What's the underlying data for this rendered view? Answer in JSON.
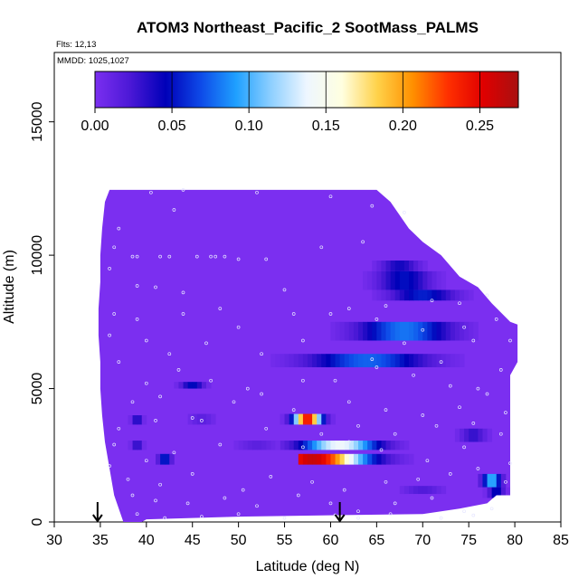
{
  "chart_data": {
    "type": "heatmap",
    "title": "ATOM3 Northeast_Pacific_2 SootMass_PALMS",
    "annotations": [
      "Flts: 12,13",
      "MMDD: 1025,1027"
    ],
    "xlabel": "Latitude (deg N)",
    "ylabel": "Altitude (m)",
    "xlim": [
      30,
      85
    ],
    "ylim": [
      0,
      17600
    ],
    "x_ticks": [
      30,
      35,
      40,
      45,
      50,
      55,
      60,
      65,
      70,
      75,
      80,
      85
    ],
    "y_ticks": [
      0,
      5000,
      10000,
      15000
    ],
    "grid": false,
    "colorbar": {
      "ticks": [
        "0.00",
        "0.05",
        "0.10",
        "0.15",
        "0.20",
        "0.25"
      ],
      "tick_values": [
        0,
        0.05,
        0.1,
        0.15,
        0.2,
        0.25
      ],
      "range": [
        0,
        0.275
      ],
      "colors": [
        "#7b2ff0",
        "#4b18d6",
        "#0000b8",
        "#0e4ae8",
        "#1fa0ff",
        "#8fd0ff",
        "#eef6ff",
        "#ffffe0",
        "#ffd24a",
        "#ff9000",
        "#ff3000",
        "#e00000",
        "#a81010"
      ]
    },
    "background_value": 0.0,
    "domain_outline": [
      [
        36.0,
        12450
      ],
      [
        43.0,
        12450
      ],
      [
        65.0,
        12450
      ],
      [
        66.5,
        12000
      ],
      [
        67.5,
        11500
      ],
      [
        68.5,
        11000
      ],
      [
        70.0,
        10500
      ],
      [
        72.0,
        10000
      ],
      [
        74.0,
        9200
      ],
      [
        76.0,
        8800
      ],
      [
        77.5,
        8200
      ],
      [
        79.5,
        7500
      ],
      [
        80.3,
        7400
      ],
      [
        80.3,
        6000
      ],
      [
        79.5,
        5500
      ],
      [
        79.5,
        1000
      ],
      [
        78.0,
        1000
      ],
      [
        77.0,
        700
      ],
      [
        74.0,
        500
      ],
      [
        70.0,
        300
      ],
      [
        50.0,
        200
      ],
      [
        40.0,
        100
      ],
      [
        39.5,
        0
      ],
      [
        37.5,
        0
      ],
      [
        36.5,
        1000
      ],
      [
        36.0,
        2000
      ],
      [
        35.5,
        3000
      ],
      [
        35.2,
        4000
      ],
      [
        35.0,
        5000
      ],
      [
        35.0,
        6000
      ],
      [
        34.8,
        7000
      ],
      [
        34.8,
        8000
      ],
      [
        35.0,
        9000
      ],
      [
        35.0,
        10000
      ],
      [
        35.2,
        11000
      ],
      [
        35.5,
        12000
      ]
    ],
    "plumes": [
      {
        "lat": [
          56.5,
          75.5
        ],
        "alt": [
          2150,
          2550
        ],
        "peak_lat": 58.0,
        "peak": 0.262,
        "width": 8.0
      },
      {
        "lat": [
          54.0,
          61.5
        ],
        "alt": [
          3650,
          4050
        ],
        "peak_lat": 57.5,
        "peak": 0.245,
        "width": 2.1
      },
      {
        "lat": [
          53.5,
          71.5
        ],
        "alt": [
          2700,
          3050
        ],
        "peak_lat": 61.0,
        "peak": 0.14,
        "width": 6.0
      },
      {
        "lat": [
          53.0,
          80.0
        ],
        "alt": [
          6800,
          7500
        ],
        "peak_lat": 68.0,
        "peak": 0.08,
        "width": 7.0
      },
      {
        "lat": [
          52.5,
          80.0
        ],
        "alt": [
          5800,
          6300
        ],
        "peak_lat": 64.0,
        "peak": 0.075,
        "width": 9.0
      },
      {
        "lat": [
          60.0,
          78.0
        ],
        "alt": [
          8300,
          8700
        ],
        "peak_lat": 70.0,
        "peak": 0.055,
        "width": 5.0
      },
      {
        "lat": [
          62.5,
          73.5
        ],
        "alt": [
          8700,
          9400
        ],
        "peak_lat": 68.0,
        "peak": 0.05,
        "width": 4.0
      },
      {
        "lat": [
          40.0,
          47.0
        ],
        "alt": [
          5000,
          5250
        ],
        "peak_lat": 45.0,
        "peak": 0.05,
        "width": 1.8
      },
      {
        "lat": [
          60.0,
          71.0
        ],
        "alt": [
          9400,
          9800
        ],
        "peak_lat": 67.5,
        "peak": 0.04,
        "width": 3.0
      },
      {
        "lat": [
          74.0,
          80.0
        ],
        "alt": [
          1300,
          1800
        ],
        "peak_lat": 77.5,
        "peak": 0.1,
        "width": 1.4
      },
      {
        "lat": [
          76.0,
          80.0
        ],
        "alt": [
          900,
          1300
        ],
        "peak_lat": 78.0,
        "peak": 0.05,
        "width": 1.2
      },
      {
        "lat": [
          38.0,
          40.5
        ],
        "alt": [
          3650,
          4000
        ],
        "peak_lat": 39.0,
        "peak": 0.04,
        "width": 0.8
      },
      {
        "lat": [
          38.0,
          40.5
        ],
        "alt": [
          2700,
          3050
        ],
        "peak_lat": 39.0,
        "peak": 0.035,
        "width": 0.8
      },
      {
        "lat": [
          41.0,
          45.0
        ],
        "alt": [
          2150,
          2550
        ],
        "peak_lat": 42.0,
        "peak": 0.06,
        "width": 1.0
      },
      {
        "lat": [
          44.0,
          50.0
        ],
        "alt": [
          3650,
          4050
        ],
        "peak_lat": 46.0,
        "peak": 0.015,
        "width": 2.0
      },
      {
        "lat": [
          73.0,
          78.0
        ],
        "alt": [
          3000,
          3500
        ],
        "peak_lat": 75.5,
        "peak": 0.03,
        "width": 2.0
      },
      {
        "lat": [
          67.0,
          76.0
        ],
        "alt": [
          1050,
          1350
        ],
        "peak_lat": 70.0,
        "peak": 0.02,
        "width": 3.0
      },
      {
        "lat": [
          47.0,
          56.0
        ],
        "alt": [
          2700,
          3050
        ],
        "peak_lat": 52.0,
        "peak": 0.015,
        "width": 3.0
      }
    ],
    "samples": [
      [
        40.5,
        12350
      ],
      [
        44.0,
        12450
      ],
      [
        52.0,
        12350
      ],
      [
        60.0,
        12200
      ],
      [
        64.5,
        11850
      ],
      [
        68.0,
        11600
      ],
      [
        37.0,
        11000
      ],
      [
        36.5,
        10300
      ],
      [
        38.5,
        9950
      ],
      [
        39.0,
        9950
      ],
      [
        41.5,
        9950
      ],
      [
        42.5,
        9950
      ],
      [
        45.5,
        9950
      ],
      [
        47.0,
        9950
      ],
      [
        47.5,
        9950
      ],
      [
        48.5,
        9950
      ],
      [
        50.0,
        9850
      ],
      [
        53.0,
        9850
      ],
      [
        59.0,
        10300
      ],
      [
        63.5,
        10500
      ],
      [
        43.0,
        11700
      ],
      [
        36.0,
        9500
      ],
      [
        39.0,
        8850
      ],
      [
        41.0,
        8800
      ],
      [
        44.0,
        8600
      ],
      [
        48.0,
        8000
      ],
      [
        55.0,
        8700
      ],
      [
        62.0,
        8000
      ],
      [
        66.0,
        8100
      ],
      [
        71.0,
        8300
      ],
      [
        74.0,
        8200
      ],
      [
        77.0,
        8500
      ],
      [
        36.5,
        7800
      ],
      [
        39.0,
        7600
      ],
      [
        44.0,
        7800
      ],
      [
        50.0,
        7300
      ],
      [
        56.0,
        7800
      ],
      [
        60.0,
        7800
      ],
      [
        65.0,
        7600
      ],
      [
        70.0,
        7200
      ],
      [
        74.5,
        7300
      ],
      [
        78.0,
        7600
      ],
      [
        36.0,
        7000
      ],
      [
        40.0,
        6800
      ],
      [
        42.5,
        6300
      ],
      [
        46.5,
        6700
      ],
      [
        52.5,
        6300
      ],
      [
        57.0,
        6800
      ],
      [
        64.5,
        6100
      ],
      [
        68.0,
        6700
      ],
      [
        72.0,
        6000
      ],
      [
        75.5,
        6800
      ],
      [
        79.5,
        6800
      ],
      [
        37.0,
        6000
      ],
      [
        40.0,
        5200
      ],
      [
        43.5,
        5700
      ],
      [
        47.0,
        5300
      ],
      [
        51.0,
        5000
      ],
      [
        57.0,
        5300
      ],
      [
        60.5,
        5300
      ],
      [
        65.0,
        5800
      ],
      [
        69.0,
        5500
      ],
      [
        73.0,
        5100
      ],
      [
        76.0,
        5000
      ],
      [
        78.5,
        5700
      ],
      [
        38.5,
        4500
      ],
      [
        41.5,
        4700
      ],
      [
        45.0,
        3900
      ],
      [
        49.5,
        4500
      ],
      [
        52.5,
        4800
      ],
      [
        56.0,
        4200
      ],
      [
        62.0,
        4500
      ],
      [
        66.0,
        4200
      ],
      [
        70.0,
        4000
      ],
      [
        74.0,
        4300
      ],
      [
        77.0,
        4800
      ],
      [
        79.0,
        4100
      ],
      [
        37.0,
        3500
      ],
      [
        41.0,
        3800
      ],
      [
        46.0,
        3800
      ],
      [
        53.0,
        3500
      ],
      [
        59.0,
        3300
      ],
      [
        63.0,
        3600
      ],
      [
        67.0,
        3300
      ],
      [
        71.5,
        3600
      ],
      [
        75.5,
        3700
      ],
      [
        78.5,
        3300
      ],
      [
        36.5,
        2900
      ],
      [
        40.0,
        2300
      ],
      [
        43.0,
        2600
      ],
      [
        48.0,
        2900
      ],
      [
        57.0,
        2800
      ],
      [
        62.0,
        3000
      ],
      [
        65.5,
        2700
      ],
      [
        70.5,
        2300
      ],
      [
        74.5,
        2800
      ],
      [
        79.5,
        2200
      ],
      [
        36.0,
        2100
      ],
      [
        38.0,
        1600
      ],
      [
        41.5,
        1400
      ],
      [
        45.0,
        1800
      ],
      [
        50.5,
        1200
      ],
      [
        53.5,
        1700
      ],
      [
        58.0,
        1500
      ],
      [
        61.5,
        1200
      ],
      [
        66.0,
        1500
      ],
      [
        69.5,
        1600
      ],
      [
        73.0,
        1800
      ],
      [
        76.0,
        2000
      ],
      [
        79.0,
        1500
      ],
      [
        38.5,
        1000
      ],
      [
        41.0,
        800
      ],
      [
        44.5,
        700
      ],
      [
        48.5,
        900
      ],
      [
        52.0,
        600
      ],
      [
        56.5,
        1000
      ],
      [
        60.0,
        700
      ],
      [
        63.0,
        400
      ],
      [
        67.0,
        700
      ],
      [
        71.0,
        900
      ],
      [
        74.5,
        400
      ],
      [
        77.5,
        500
      ],
      [
        39.0,
        300
      ],
      [
        42.0,
        150
      ],
      [
        46.0,
        200
      ],
      [
        50.0,
        300
      ],
      [
        55.0,
        150
      ],
      [
        60.5,
        250
      ],
      [
        63.0,
        150
      ],
      [
        66.5,
        300
      ],
      [
        72.0,
        150
      ],
      [
        75.5,
        250
      ]
    ],
    "arrows": [
      34.7,
      61.0
    ]
  }
}
